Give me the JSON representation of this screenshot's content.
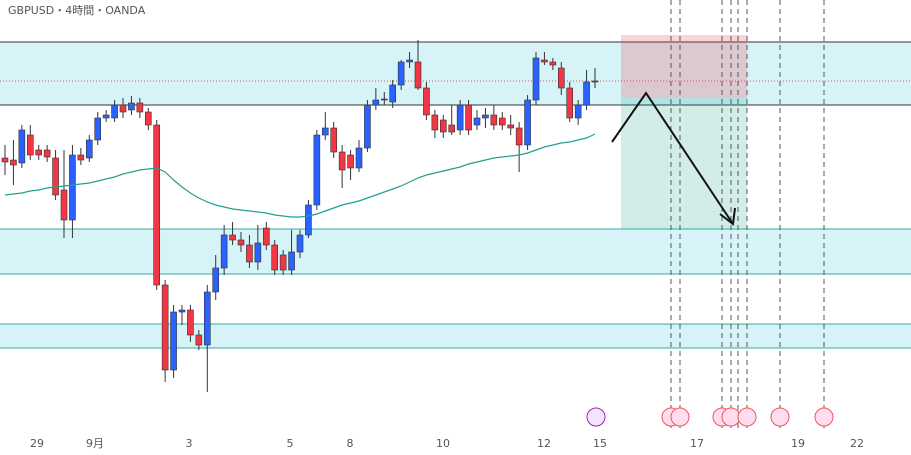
{
  "chart_data": {
    "type": "candlestick",
    "title": "GBPUSD・4時間・OANDA",
    "x_labels": [
      "29",
      "9月",
      "3",
      "5",
      "8",
      "10",
      "12",
      "15",
      "17",
      "19",
      "22"
    ],
    "ylim": [
      0,
      430
    ],
    "up_color": "#2962ff",
    "down_color": "#f23645",
    "ma_color": "#22a08f",
    "ohlc": [
      [
        272,
        285,
        255,
        268
      ],
      [
        270,
        290,
        245,
        265
      ],
      [
        267,
        305,
        262,
        300
      ],
      [
        295,
        305,
        270,
        275
      ],
      [
        280,
        285,
        270,
        275
      ],
      [
        280,
        285,
        268,
        273
      ],
      [
        272,
        280,
        230,
        235
      ],
      [
        240,
        280,
        192,
        210
      ],
      [
        210,
        285,
        192,
        275
      ],
      [
        275,
        282,
        265,
        270
      ],
      [
        272,
        295,
        268,
        290
      ],
      [
        290,
        318,
        285,
        312
      ],
      [
        312,
        320,
        308,
        315
      ],
      [
        312,
        330,
        308,
        325
      ],
      [
        325,
        332,
        312,
        318
      ],
      [
        320,
        334,
        315,
        327
      ],
      [
        327,
        332,
        312,
        318
      ],
      [
        318,
        322,
        300,
        305
      ],
      [
        305,
        310,
        140,
        145
      ],
      [
        145,
        150,
        48,
        60
      ],
      [
        60,
        125,
        52,
        118
      ],
      [
        118,
        125,
        105,
        120
      ],
      [
        120,
        125,
        88,
        95
      ],
      [
        95,
        100,
        80,
        85
      ],
      [
        85,
        145,
        38,
        138
      ],
      [
        138,
        175,
        130,
        162
      ],
      [
        162,
        205,
        155,
        195
      ],
      [
        195,
        208,
        185,
        190
      ],
      [
        190,
        198,
        178,
        185
      ],
      [
        185,
        195,
        162,
        168
      ],
      [
        168,
        205,
        160,
        187
      ],
      [
        202,
        208,
        180,
        185
      ],
      [
        185,
        190,
        155,
        160
      ],
      [
        175,
        180,
        155,
        160
      ],
      [
        160,
        200,
        155,
        178
      ],
      [
        178,
        200,
        172,
        195
      ],
      [
        195,
        230,
        192,
        225
      ],
      [
        225,
        300,
        220,
        295
      ],
      [
        295,
        318,
        290,
        302
      ],
      [
        302,
        308,
        272,
        278
      ],
      [
        278,
        285,
        242,
        260
      ],
      [
        275,
        280,
        250,
        262
      ],
      [
        262,
        290,
        258,
        282
      ],
      [
        282,
        330,
        278,
        325
      ],
      [
        325,
        342,
        320,
        330
      ],
      [
        330,
        338,
        325,
        331
      ],
      [
        328,
        350,
        322,
        345
      ],
      [
        345,
        370,
        340,
        368
      ],
      [
        368,
        378,
        362,
        370
      ],
      [
        368,
        390,
        340,
        342
      ],
      [
        342,
        348,
        310,
        315
      ],
      [
        315,
        320,
        292,
        300
      ],
      [
        310,
        315,
        292,
        298
      ],
      [
        305,
        325,
        295,
        298
      ],
      [
        300,
        330,
        295,
        325
      ],
      [
        325,
        330,
        295,
        300
      ],
      [
        305,
        320,
        300,
        312
      ],
      [
        312,
        322,
        302,
        315
      ],
      [
        315,
        325,
        300,
        305
      ],
      [
        312,
        318,
        300,
        305
      ],
      [
        305,
        315,
        295,
        302
      ],
      [
        302,
        308,
        258,
        285
      ],
      [
        285,
        335,
        280,
        330
      ],
      [
        330,
        378,
        325,
        372
      ],
      [
        370,
        378,
        365,
        368
      ],
      [
        368,
        372,
        360,
        365
      ],
      [
        362,
        368,
        335,
        342
      ],
      [
        342,
        348,
        308,
        312
      ],
      [
        312,
        330,
        305,
        325
      ],
      [
        325,
        360,
        320,
        348
      ],
      [
        348,
        362,
        342,
        349
      ]
    ],
    "ma": [
      235,
      236,
      237,
      239,
      240,
      242,
      243,
      244,
      245,
      246,
      247,
      249,
      251,
      253,
      256,
      258,
      260,
      261,
      262,
      258,
      250,
      243,
      237,
      232,
      228,
      225,
      223,
      221,
      220,
      219,
      218,
      217,
      215,
      214,
      213,
      213,
      214,
      216,
      219,
      222,
      225,
      227,
      229,
      232,
      235,
      238,
      241,
      244,
      248,
      252,
      255,
      257,
      259,
      261,
      263,
      266,
      268,
      270,
      272,
      273,
      274,
      275,
      277,
      280,
      283,
      285,
      287,
      288,
      290,
      292,
      296
    ],
    "zones": [
      [
        388,
        325
      ],
      [
        201,
        156
      ],
      [
        106,
        82
      ]
    ],
    "zone_color": "#d6f3f8",
    "dotted_level": 349,
    "position": {
      "stop": 395,
      "entry": 332,
      "target": 201
    }
  }
}
